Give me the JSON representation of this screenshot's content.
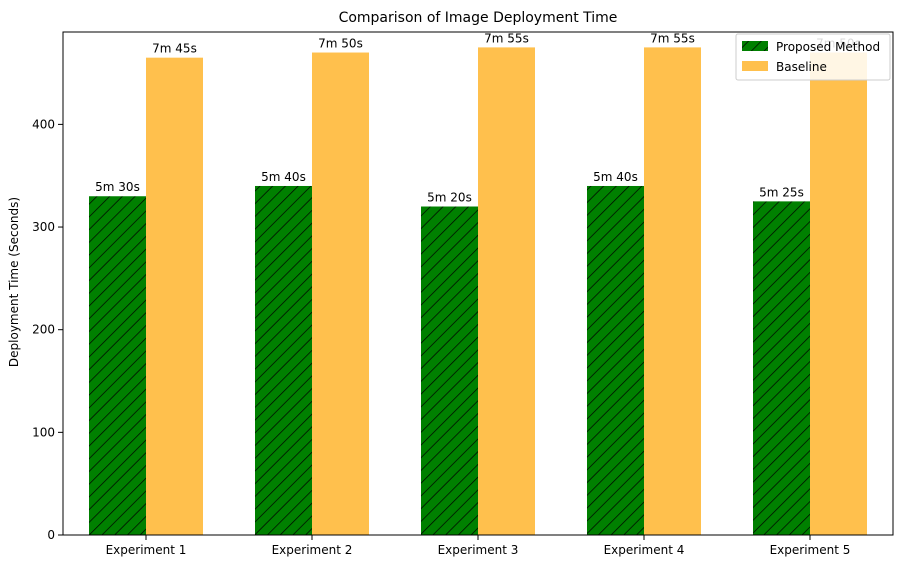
{
  "chart_data": {
    "type": "bar",
    "title": "Comparison of Image Deployment Time",
    "xlabel": "",
    "ylabel": "Deployment Time (Seconds)",
    "categories": [
      "Experiment 1",
      "Experiment 2",
      "Experiment 3",
      "Experiment 4",
      "Experiment 5"
    ],
    "ylim": [
      0,
      490
    ],
    "yticks": [
      0,
      100,
      200,
      300,
      400
    ],
    "series": [
      {
        "name": "Proposed Method",
        "color": "#008000",
        "hatch": "diagonal",
        "values": [
          330,
          340,
          320,
          340,
          325
        ],
        "labels": [
          "5m 30s",
          "5m 40s",
          "5m 20s",
          "5m 40s",
          "5m 25s"
        ]
      },
      {
        "name": "Baseline",
        "color": "#FFC04D",
        "values": [
          465,
          470,
          475,
          475,
          470
        ],
        "labels": [
          "7m 45s",
          "7m 50s",
          "7m 55s",
          "7m 55s",
          "7m 50s"
        ]
      }
    ],
    "legend_position": "top-right"
  }
}
